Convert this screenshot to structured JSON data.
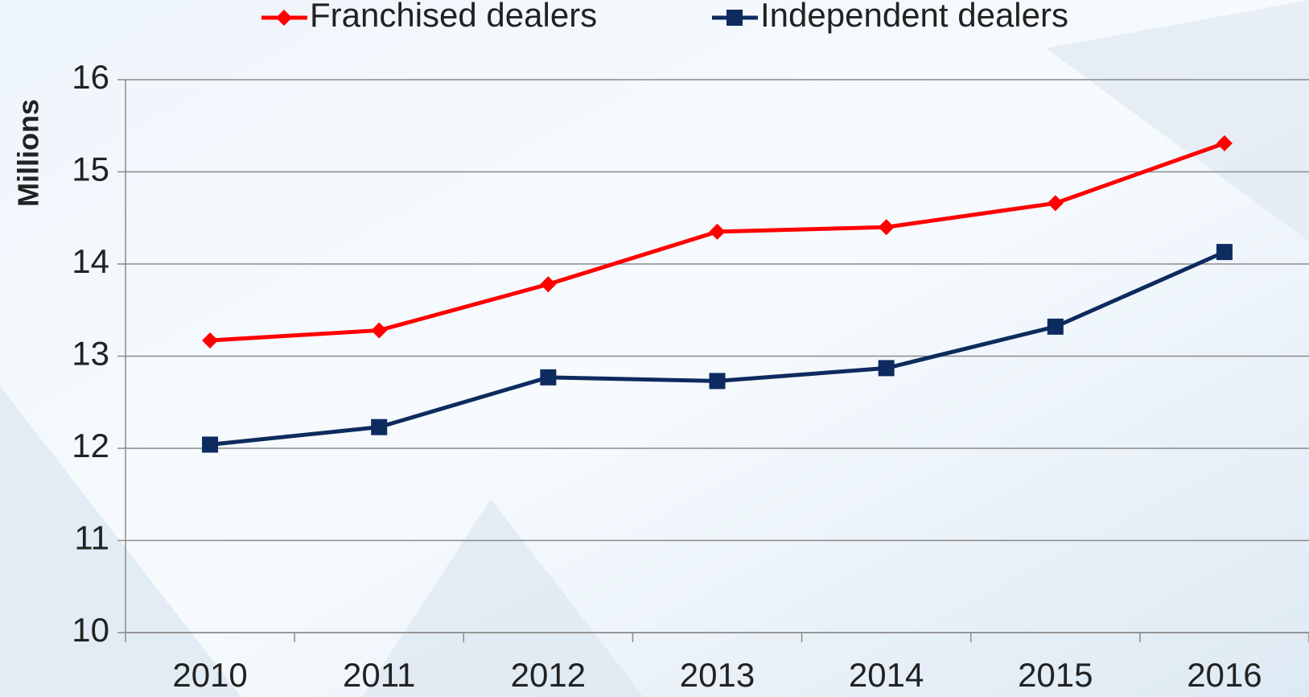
{
  "chart_data": {
    "type": "line",
    "y_label": "Millions",
    "categories": [
      "2010",
      "2011",
      "2012",
      "2013",
      "2014",
      "2015",
      "2016"
    ],
    "series": [
      {
        "name": "Franchised dealers",
        "color": "#ff0000",
        "marker": "diamond",
        "values": [
          13.17,
          13.28,
          13.78,
          14.35,
          14.4,
          14.66,
          15.31
        ]
      },
      {
        "name": "Independent dealers",
        "color": "#0d2b5e",
        "marker": "square",
        "values": [
          12.04,
          12.23,
          12.77,
          12.73,
          12.87,
          13.32,
          14.13
        ]
      }
    ],
    "ylim": [
      10,
      16
    ],
    "yticks": [
      10,
      11,
      12,
      13,
      14,
      15,
      16
    ],
    "grid": true,
    "legend": "top"
  }
}
